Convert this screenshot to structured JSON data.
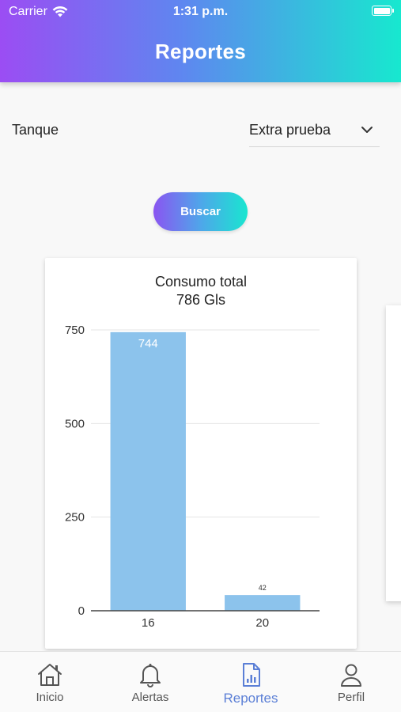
{
  "status_bar": {
    "carrier": "Carrier",
    "time": "1:31 p.m."
  },
  "header": {
    "title": "Reportes"
  },
  "filters": {
    "tank_label": "Tanque",
    "tank_value": "Extra prueba"
  },
  "search_button": {
    "label": "Buscar"
  },
  "chart": {
    "title_line1": "Consumo total",
    "title_line2": "786 Gls"
  },
  "chart_data": {
    "type": "bar",
    "title": "Consumo total 786 Gls",
    "categories": [
      "16",
      "20"
    ],
    "values": [
      744,
      42
    ],
    "data_labels": [
      "744",
      "42"
    ],
    "y_ticks": [
      0,
      250,
      500,
      750
    ],
    "ylim": [
      0,
      750
    ],
    "grid": true,
    "bar_color": "#8cc3ec"
  },
  "tabs": [
    {
      "label": "Inicio",
      "icon": "home-icon"
    },
    {
      "label": "Alertas",
      "icon": "bell-icon"
    },
    {
      "label": "Reportes",
      "icon": "report-icon",
      "active": true
    },
    {
      "label": "Perfil",
      "icon": "person-icon"
    }
  ],
  "colors": {
    "accent": "#5b7fd6",
    "gradient_start": "#9b4df3",
    "gradient_end": "#17e8cf"
  }
}
